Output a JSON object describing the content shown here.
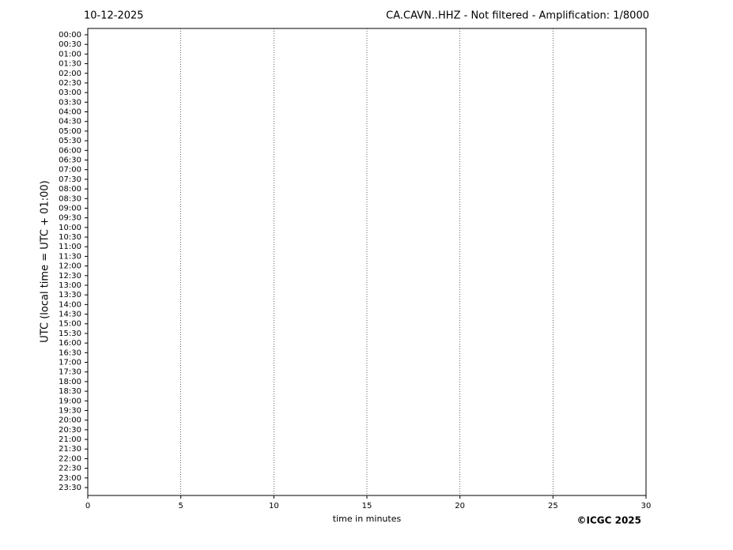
{
  "chart_data": {
    "type": "helicorder",
    "date": "10-12-2025",
    "title": "CA.CAVN..HHZ - Not filtered - Amplification: 1/8000",
    "ylabel": "UTC (local time = UTC + 01:00)",
    "xlabel": "time in minutes",
    "credit": "©ICGC 2025",
    "categories": [
      "00:00",
      "00:30",
      "01:00",
      "01:30",
      "02:00",
      "02:30",
      "03:00",
      "03:30",
      "04:00",
      "04:30",
      "05:00",
      "05:30",
      "06:00",
      "06:30",
      "07:00",
      "07:30",
      "08:00",
      "08:30",
      "09:00",
      "09:30",
      "10:00",
      "10:30",
      "11:00",
      "11:30",
      "12:00",
      "12:30",
      "13:00",
      "13:30",
      "14:00",
      "14:30",
      "15:00",
      "15:30",
      "16:00",
      "16:30",
      "17:00",
      "17:30",
      "18:00",
      "18:30",
      "19:00",
      "19:30",
      "20:00",
      "20:30",
      "21:00",
      "21:30",
      "22:00",
      "22:30",
      "23:00",
      "23:30"
    ],
    "colors": [
      "#ff0000",
      "#0000ff"
    ],
    "xlim": [
      0,
      30
    ],
    "xticks": [
      0,
      5,
      10,
      15,
      20,
      25,
      30
    ],
    "grid": true
  }
}
